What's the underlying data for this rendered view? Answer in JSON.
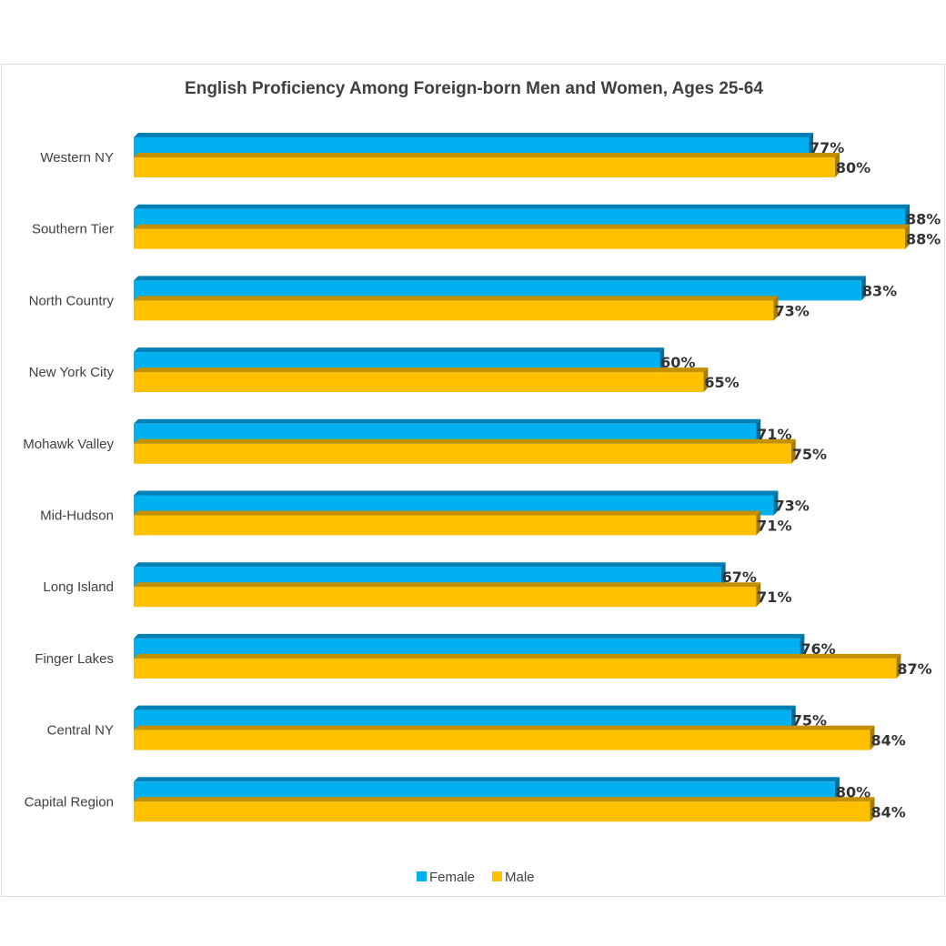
{
  "chart_data": {
    "type": "bar",
    "orientation": "horizontal",
    "title": "English Proficiency Among Foreign-born Men and Women, Ages 25-64",
    "categories": [
      "Western NY",
      "Southern Tier",
      "North Country",
      "New York City",
      "Mohawk Valley",
      "Mid-Hudson",
      "Long Island",
      "Finger Lakes",
      "Central NY",
      "Capital Region"
    ],
    "series": [
      {
        "name": "Female",
        "color": "#00b0f0",
        "values": [
          77,
          88,
          83,
          60,
          71,
          73,
          67,
          76,
          75,
          80
        ]
      },
      {
        "name": "Male",
        "color": "#ffc000",
        "values": [
          80,
          88,
          73,
          65,
          75,
          71,
          71,
          87,
          84,
          84
        ]
      }
    ],
    "value_suffix": "%",
    "xlim": [
      0,
      88
    ],
    "xlabel": "",
    "ylabel": "",
    "grid": false,
    "legend_position": "bottom"
  }
}
